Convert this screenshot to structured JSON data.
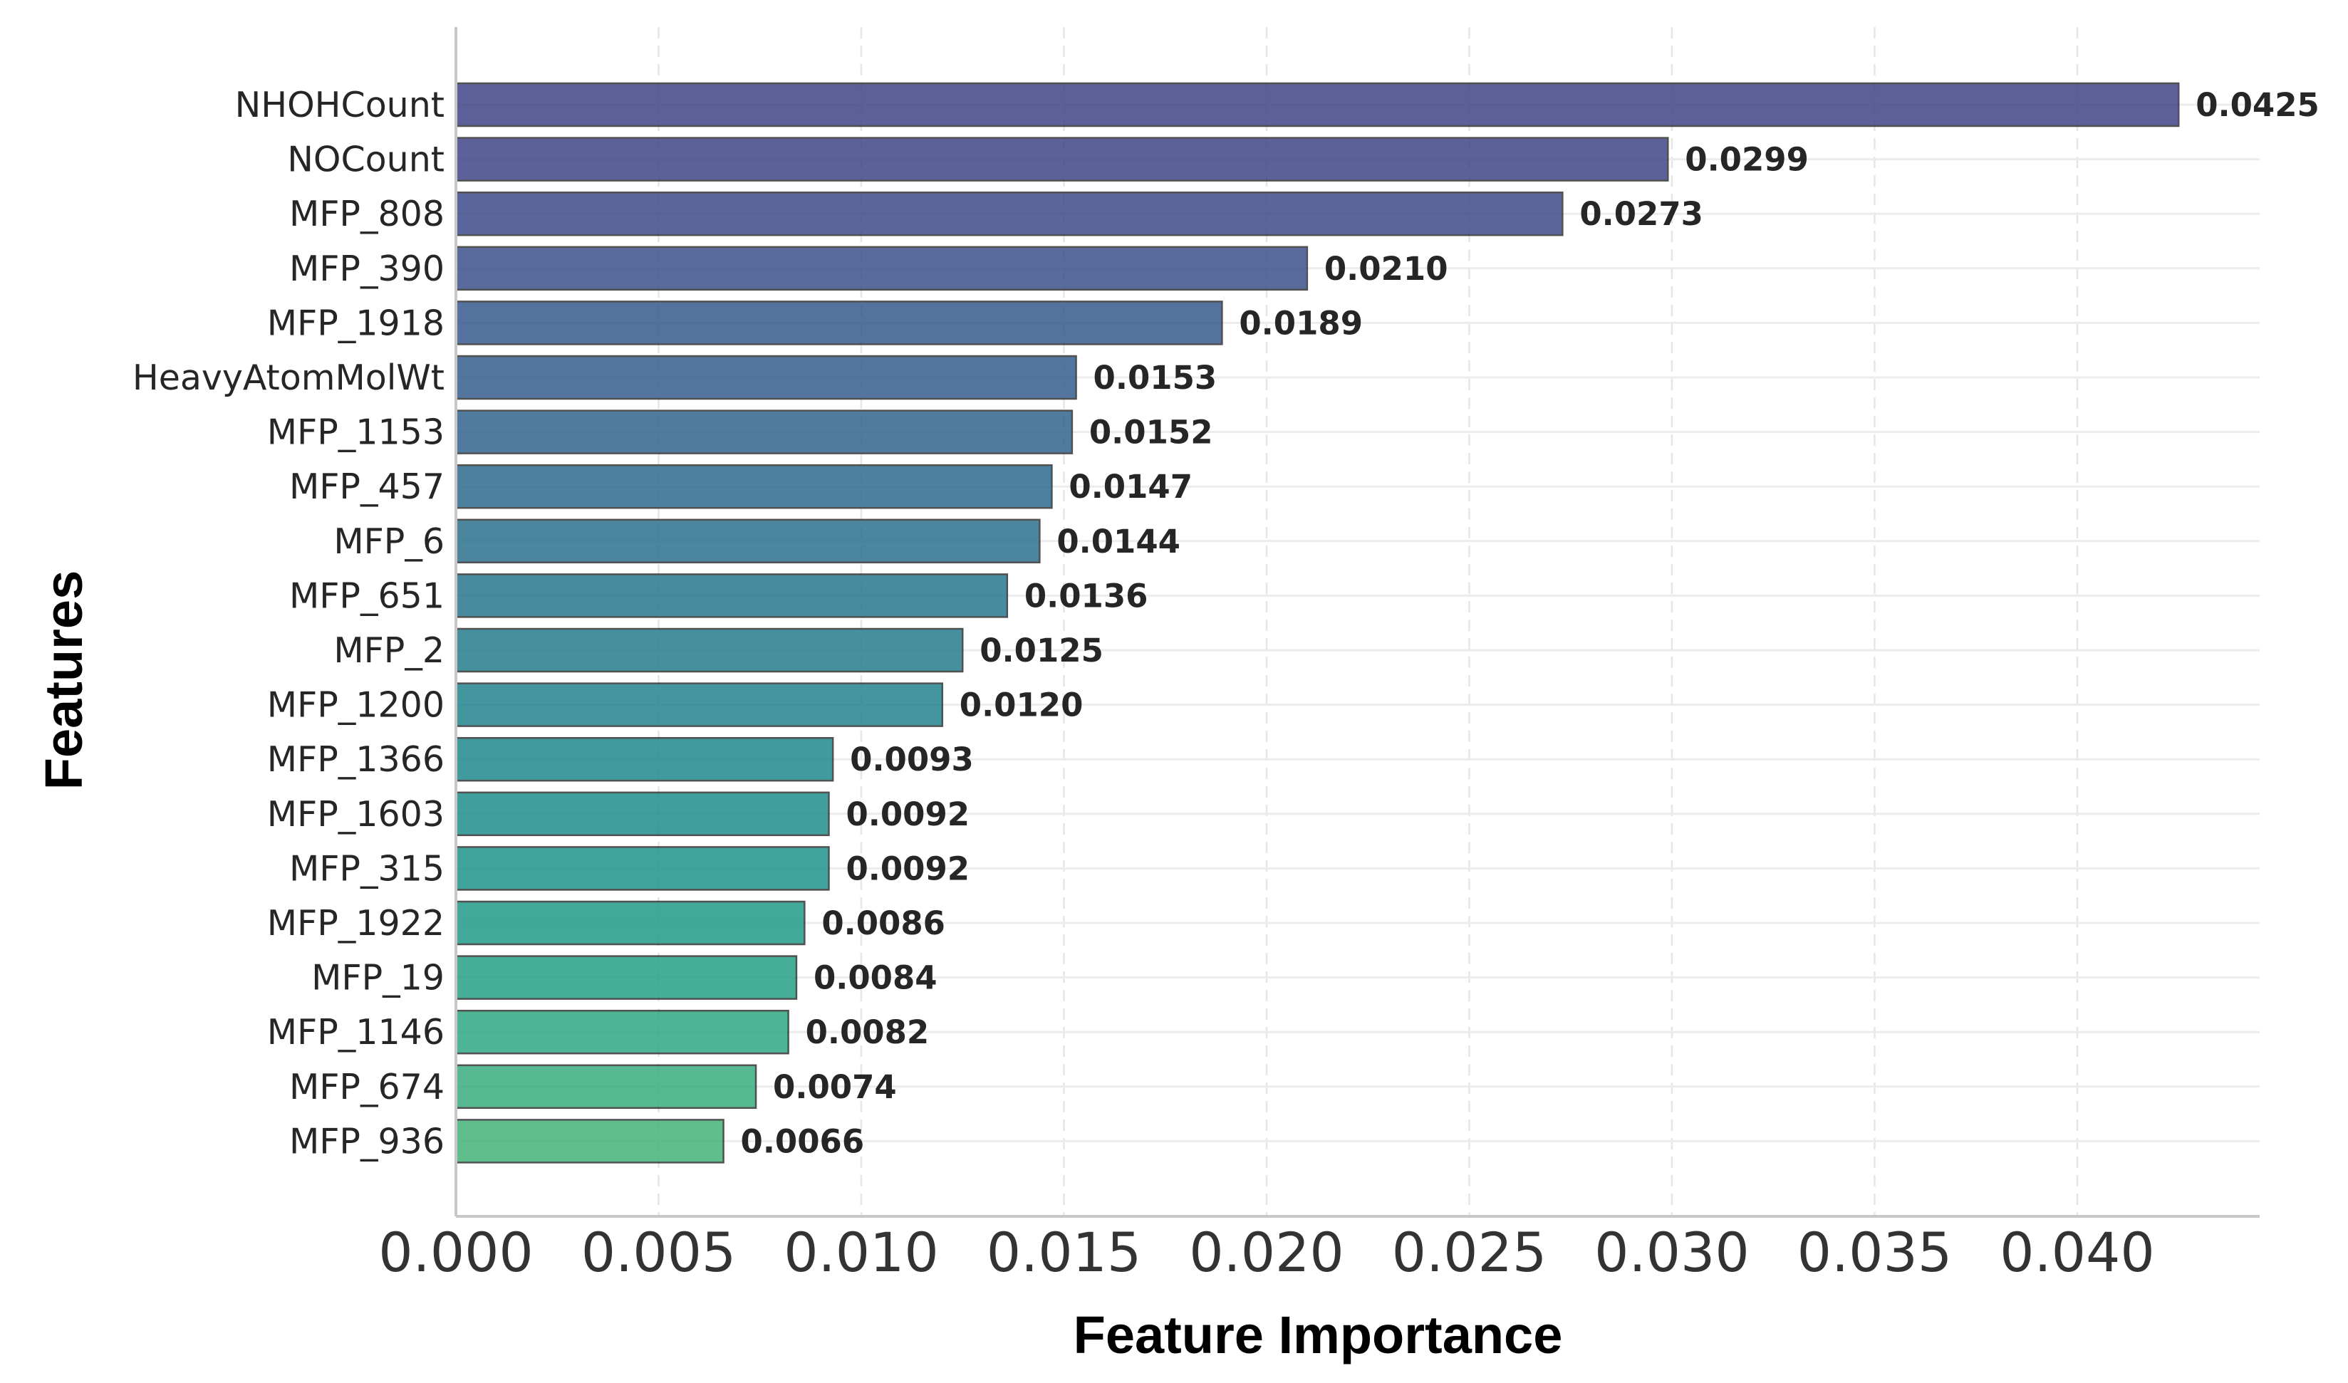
{
  "chart_data": {
    "type": "bar",
    "orientation": "horizontal",
    "title": "",
    "xlabel": "Feature Importance",
    "ylabel": "Features",
    "xlim": [
      0,
      0.0445
    ],
    "xticks": [
      0.0,
      0.005,
      0.01,
      0.015,
      0.02,
      0.025,
      0.03,
      0.035,
      0.04
    ],
    "xtick_labels": [
      "0.000",
      "0.005",
      "0.010",
      "0.015",
      "0.020",
      "0.025",
      "0.030",
      "0.035",
      "0.040"
    ],
    "grid": true,
    "categories": [
      "NHOHCount",
      "NOCount",
      "MFP_808",
      "MFP_390",
      "MFP_1918",
      "HeavyAtomMolWt",
      "MFP_1153",
      "MFP_457",
      "MFP_6",
      "MFP_651",
      "MFP_2",
      "MFP_1200",
      "MFP_1366",
      "MFP_1603",
      "MFP_315",
      "MFP_1922",
      "MFP_19",
      "MFP_1146",
      "MFP_674",
      "MFP_936"
    ],
    "values": [
      0.0425,
      0.0299,
      0.0273,
      0.021,
      0.0189,
      0.0153,
      0.0152,
      0.0147,
      0.0144,
      0.0136,
      0.0125,
      0.012,
      0.0093,
      0.0092,
      0.0092,
      0.0086,
      0.0084,
      0.0082,
      0.0074,
      0.0066
    ],
    "value_labels": [
      "0.0425",
      "0.0299",
      "0.0273",
      "0.0210",
      "0.0189",
      "0.0153",
      "0.0152",
      "0.0147",
      "0.0144",
      "0.0136",
      "0.0125",
      "0.0120",
      "0.0093",
      "0.0092",
      "0.0092",
      "0.0086",
      "0.0084",
      "0.0082",
      "0.0074",
      "0.0066"
    ],
    "colormap": "viridis",
    "colors": [
      "#414487",
      "#404688",
      "#3e4c8a",
      "#3b528b",
      "#38598c",
      "#355f8d",
      "#32658e",
      "#2f6b8e",
      "#2c718e",
      "#29778e",
      "#267d8e",
      "#23838e",
      "#21898d",
      "#1f8f8c",
      "#1f958b",
      "#229b89",
      "#27a186",
      "#2fa783",
      "#39ad7f",
      "#45b37a"
    ]
  }
}
